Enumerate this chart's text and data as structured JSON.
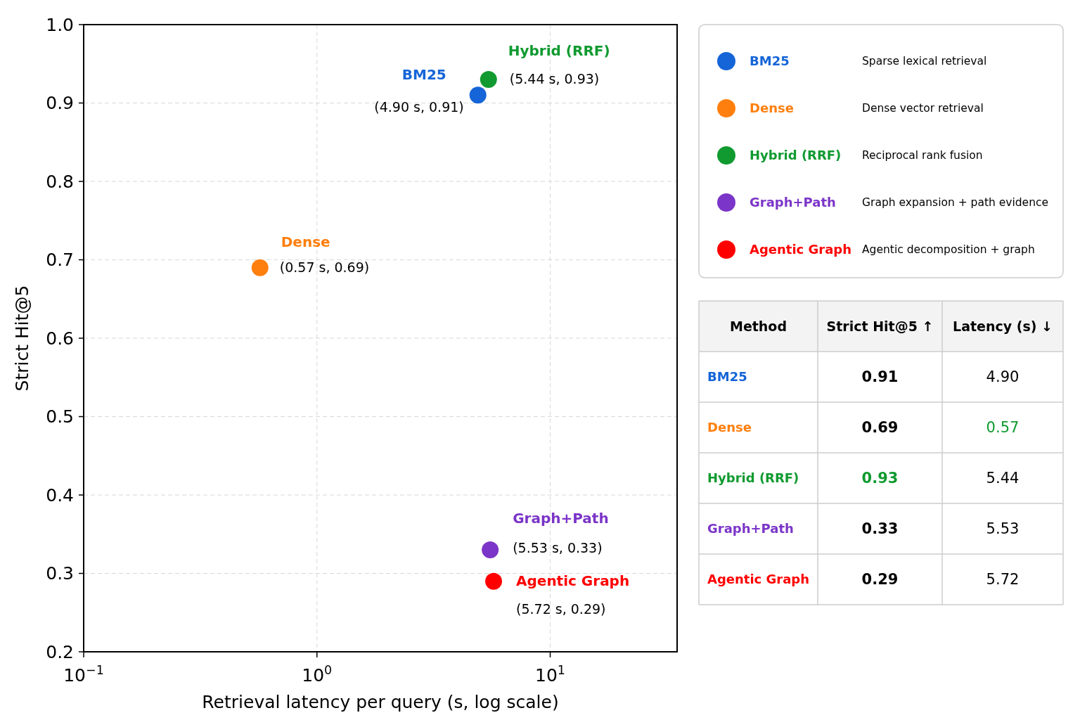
{
  "chart_data": {
    "type": "scatter",
    "xlabel": "Retrieval latency per query (s, log scale)",
    "ylabel": "Strict Hit@5",
    "log": "x",
    "grid": true,
    "legend": "right",
    "marker": "circle",
    "xlim": [
      0.1,
      35
    ],
    "xticks": [
      {
        "value": 0.1,
        "label": "10$^{−1}$"
      },
      {
        "value": 1,
        "label": "10$^{0}$"
      },
      {
        "value": 10,
        "label": "10$^{1}$"
      }
    ],
    "ylim": [
      0.2,
      1.0
    ],
    "yticks": [
      0.2,
      0.3,
      0.4,
      0.5,
      0.6,
      0.7,
      0.8,
      0.9,
      {
        "value": 1.0,
        "label": "1.0"
      }
    ],
    "series": [
      {
        "name": "BM25",
        "color": "#1565d8",
        "x": [
          4.9
        ],
        "values": [
          0.91
        ],
        "value_labels": [
          "(4.90 s, 0.91)"
        ]
      },
      {
        "name": "Dense",
        "color": "#ff7f0e",
        "x": [
          0.57
        ],
        "values": [
          0.69
        ],
        "value_labels": [
          "(0.57 s, 0.69)"
        ]
      },
      {
        "name": "Hybrid (RRF)",
        "color": "#109a30",
        "x": [
          5.44
        ],
        "values": [
          0.93
        ],
        "value_labels": [
          "(5.44 s, 0.93)"
        ]
      },
      {
        "name": "Graph+Path",
        "color": "#7b35c8",
        "x": [
          5.53
        ],
        "values": [
          0.33
        ],
        "value_labels": [
          "(5.53 s, 0.33)"
        ]
      },
      {
        "name": "Agentic Graph",
        "color": "#ff0000",
        "x": [
          5.72
        ],
        "values": [
          0.29
        ],
        "value_labels": [
          "(5.72 s, 0.29)"
        ]
      }
    ],
    "annotations": [
      "Sparse lexical retrieval",
      "Dense vector retrieval",
      "Reciprocal rank fusion",
      "Graph expansion + path evidence",
      "Agentic decomposition + graph",
      "Method",
      "Strict Hit@5 ↑",
      "Latency (s) ↓",
      "0.91",
      "4.90",
      "0.69",
      "0.57",
      "0.93",
      "5.44",
      "0.33",
      "5.53",
      "0.29",
      "5.72"
    ]
  }
}
